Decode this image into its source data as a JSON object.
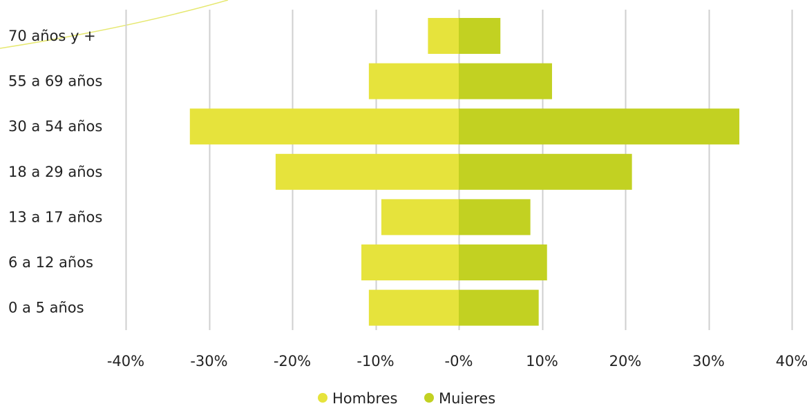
{
  "chart_data": {
    "type": "bar",
    "orientation": "horizontal",
    "categories": [
      "70 años y +",
      "55 a 69 años",
      "30 a 54 años",
      "18 a 29 años",
      "13 a 17 años",
      "6 a 12 años",
      "0 a 5 años"
    ],
    "series": [
      {
        "name": "Hombres",
        "values": [
          -3.7,
          -10.8,
          -32.3,
          -22.0,
          -9.3,
          -11.7,
          -10.8
        ]
      },
      {
        "name": "Mujeres",
        "values": [
          5.0,
          11.2,
          33.7,
          20.8,
          8.6,
          10.6,
          9.6
        ]
      }
    ],
    "xticks": [
      "-40%",
      "-30%",
      "-20%",
      "-10%",
      "-0%",
      "10%",
      "20%",
      "30%",
      "40%"
    ],
    "xlim": [
      -40,
      40
    ],
    "grid": "vertical",
    "legend_position": "bottom-center",
    "colors": {
      "Hombres": "#e6e33c",
      "Mujeres": "#c2d122",
      "grid": "#cfcfcf",
      "decor_curve": "#e6e870"
    }
  }
}
